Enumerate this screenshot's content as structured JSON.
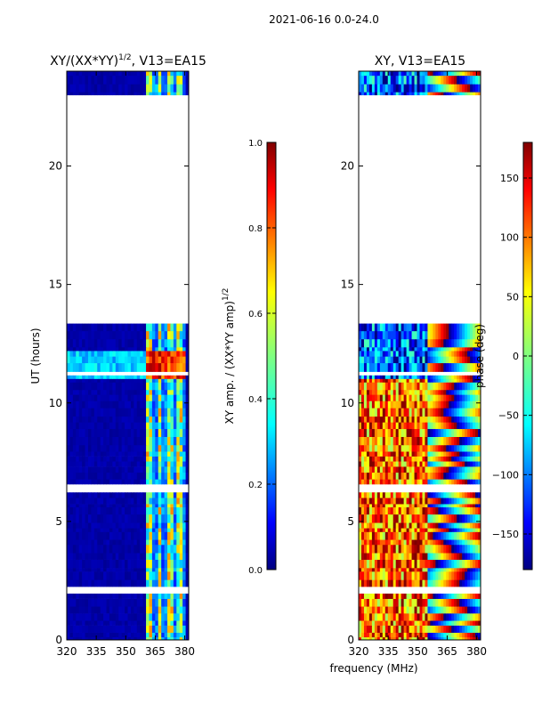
{
  "suptitle": "2021-06-16 0.0-24.0",
  "chart_data": [
    {
      "type": "heatmap",
      "title_base": "XY/(XX*YY)",
      "title_exp": "1/2",
      "title_suffix": ", V13=EA15",
      "xlabel": "",
      "ylabel": "UT (hours)",
      "xlim": [
        320,
        382
      ],
      "ylim": [
        0,
        24
      ],
      "xticks": [
        320,
        335,
        350,
        365,
        380
      ],
      "yticks": [
        0,
        5,
        10,
        15,
        20
      ],
      "colorbar": {
        "label_base": "XY amp. / (XX*YY amp)",
        "label_exp": "1/2",
        "range": [
          0.0,
          1.0
        ],
        "ticks": [
          "0.0",
          "0.2",
          "0.4",
          "0.6",
          "0.8",
          "1.0"
        ],
        "colormap": "jet"
      },
      "data_gap_hours": [
        13.3,
        22.8
      ],
      "bright_freq_range_mhz": [
        360,
        380
      ]
    },
    {
      "type": "heatmap",
      "title": "XY, V13=EA15",
      "xlabel": "frequency (MHz)",
      "ylabel": "",
      "xlim": [
        320,
        382
      ],
      "ylim": [
        0,
        24
      ],
      "xticks": [
        320,
        335,
        350,
        365,
        380
      ],
      "yticks": [
        0,
        5,
        10,
        15,
        20
      ],
      "colorbar": {
        "label": "phase (deg)",
        "range": [
          -180,
          180
        ],
        "ticks": [
          "150",
          "100",
          "50",
          "0",
          "−50",
          "−100",
          "−150"
        ],
        "colormap": "jet"
      },
      "data_gap_hours": [
        13.3,
        22.8
      ]
    }
  ],
  "colors": {
    "jet": [
      "#000080",
      "#0000ff",
      "#0080ff",
      "#00ffff",
      "#80ff80",
      "#ffff00",
      "#ff8000",
      "#ff0000",
      "#800000"
    ],
    "background": "#ffffff"
  }
}
